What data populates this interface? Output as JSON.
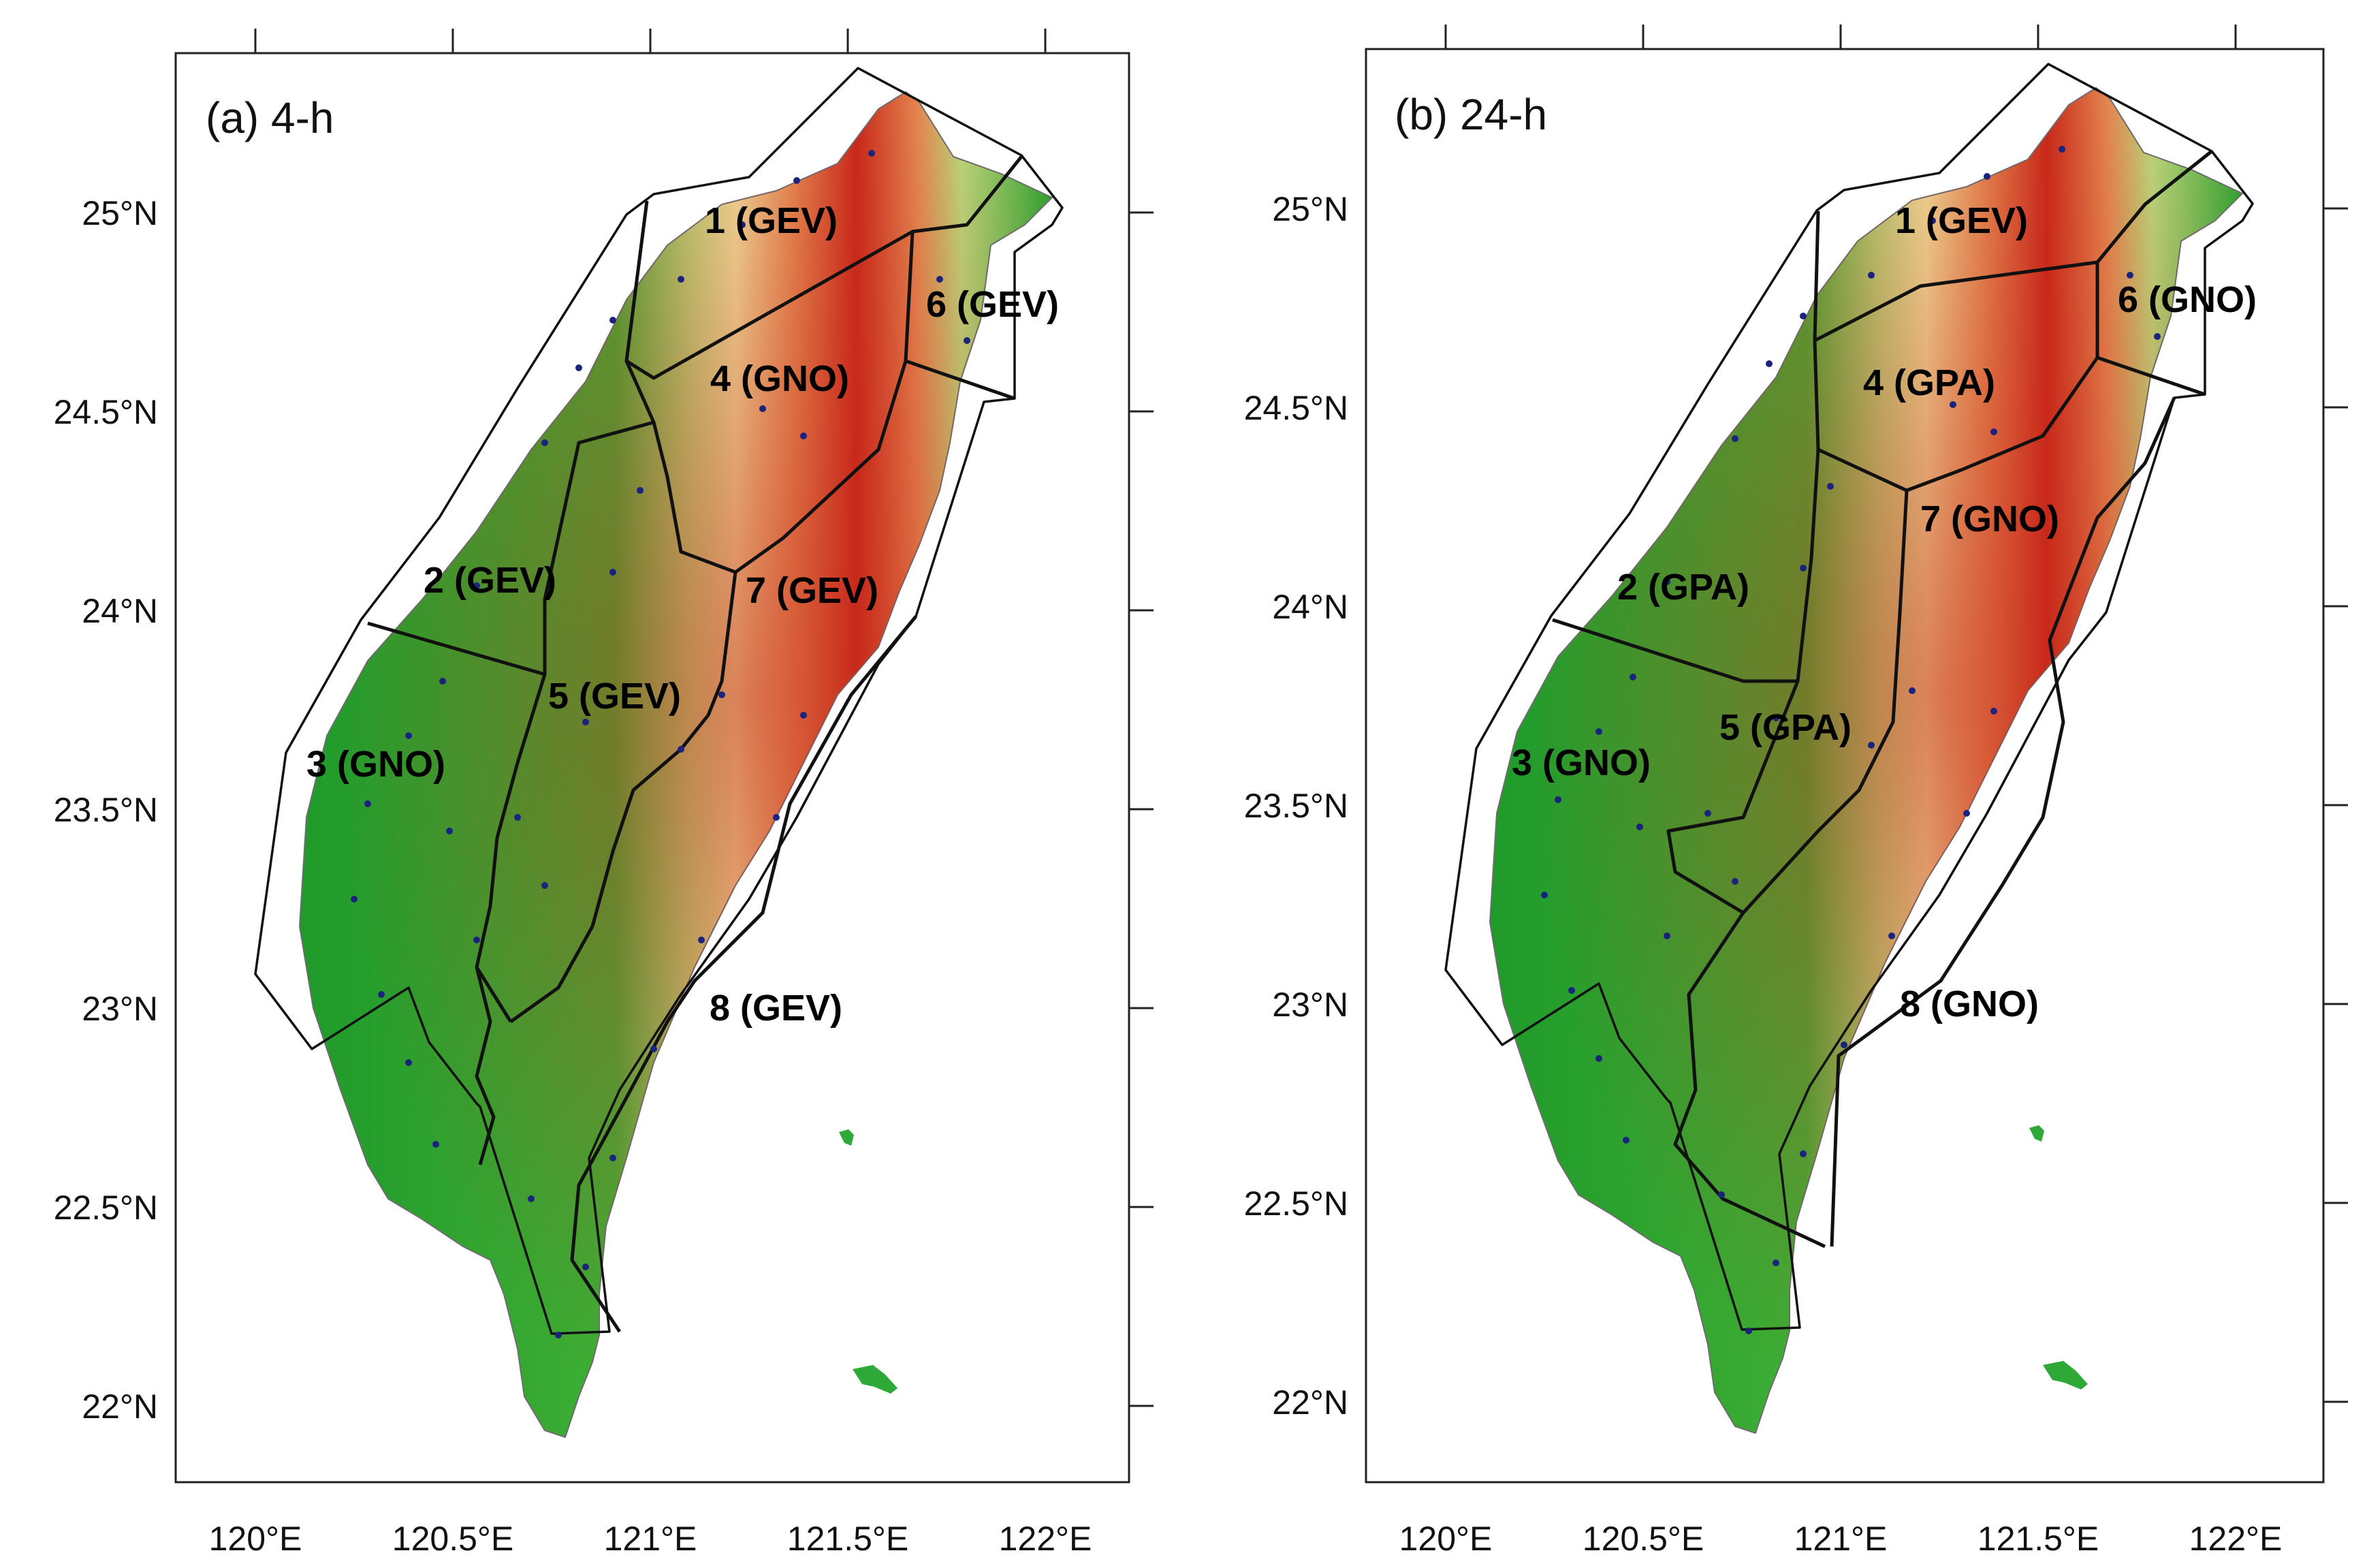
{
  "panels": [
    {
      "title": "(a) 4-h",
      "regions": [
        {
          "label": "1 (GEV)"
        },
        {
          "label": "2 (GEV)"
        },
        {
          "label": "3 (GNO)"
        },
        {
          "label": "4 (GNO)"
        },
        {
          "label": "5 (GEV)"
        },
        {
          "label": "6 (GEV)"
        },
        {
          "label": "7 (GEV)"
        },
        {
          "label": "8 (GEV)"
        }
      ]
    },
    {
      "title": "(b) 24-h",
      "regions": [
        {
          "label": "1 (GEV)"
        },
        {
          "label": "2 (GPA)"
        },
        {
          "label": "3 (GNO)"
        },
        {
          "label": "4 (GPA)"
        },
        {
          "label": "5 (GPA)"
        },
        {
          "label": "6 (GNO)"
        },
        {
          "label": "7 (GNO)"
        },
        {
          "label": "8 (GNO)"
        }
      ]
    }
  ],
  "axes": {
    "x_ticks": [
      "120°E",
      "120.5°E",
      "121°E",
      "121.5°E",
      "122°E"
    ],
    "y_ticks": [
      "25°N",
      "24.5°N",
      "24°N",
      "23.5°N",
      "23°N",
      "22.5°N",
      "22°N"
    ]
  },
  "colors": {
    "lowland": "#1f9a2a",
    "midland": "#f2eca4",
    "highland": "#c8281a",
    "station_dot": "#1a237e"
  }
}
